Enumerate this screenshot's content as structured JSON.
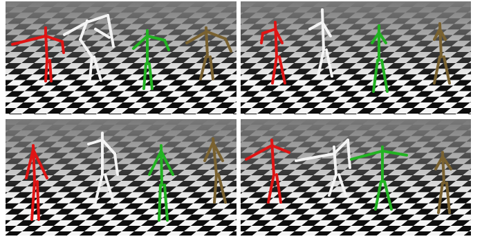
{
  "colors": {
    "background": "#ffffff",
    "checker_dark": "#0d0d0d",
    "checker_light": "#f5f5f5",
    "floor_haze": "#7a7a7a",
    "figure_red": "#e01414",
    "figure_white": "#f4f4f4",
    "figure_green": "#22b322",
    "figure_olive": "#7a6230",
    "shadow": "#6c6c6c"
  },
  "panels": [
    {
      "name": "top-left"
    },
    {
      "name": "top-right"
    },
    {
      "name": "bottom-left"
    },
    {
      "name": "bottom-right"
    }
  ],
  "figures_per_panel": [
    "red",
    "white",
    "green",
    "olive"
  ]
}
